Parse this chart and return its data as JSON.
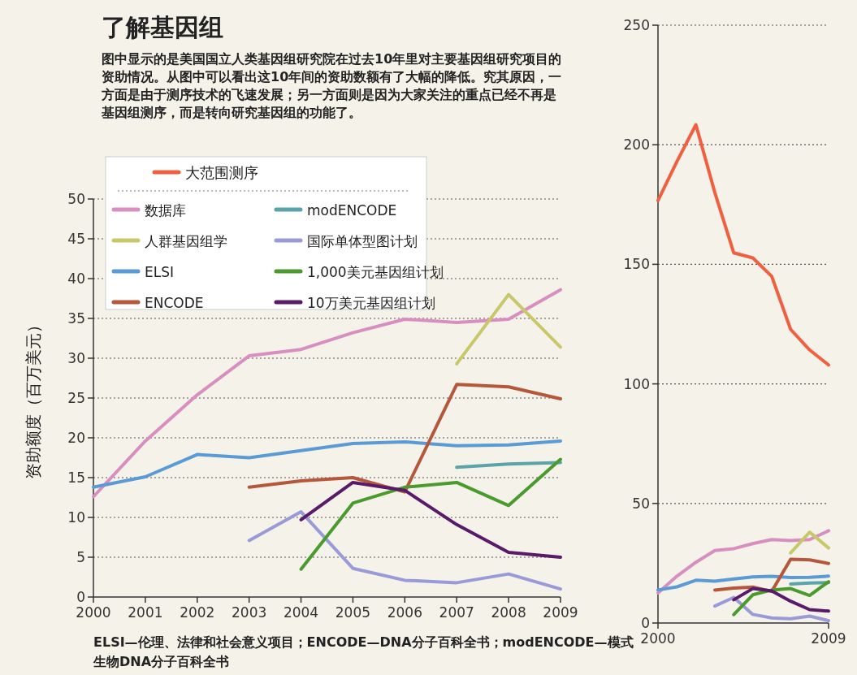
{
  "chart_data": [
    {
      "type": "line",
      "title": "了解基因组",
      "subtitle": "图中显示的是美国国立人类基因组研究院在过去10年里对主要基因组研究项目的资助情况。从图中可以看出这10年间的资助数额有了大幅的降低。究其原因，一方面是由于测序技术的飞速发展；另一方面则是因为大家关注的重点已经不再是基因组测序，而是转向研究基因组的功能了。",
      "ylabel": "资助额度（百万美元）",
      "annotations": [
        "ELSI—伦理、法律和社会意义项目；ENCODE—DNA分子百科全书；modENCODE—模式生物DNA分子百科全书"
      ],
      "xlim": [
        2000,
        2009
      ],
      "ylim": [
        0,
        50
      ],
      "xticks": [
        2000,
        2001,
        2002,
        2003,
        2004,
        2005,
        2006,
        2007,
        2008,
        2009
      ],
      "yticks": [
        0,
        5,
        10,
        15,
        20,
        25,
        30,
        35,
        40,
        45,
        50
      ],
      "grid": "y",
      "legend": "top left",
      "series": [
        {
          "name": "数据库",
          "color": "#d98ec0",
          "x": [
            2000,
            2001,
            2002,
            2003,
            2004,
            2005,
            2006,
            2007,
            2008,
            2009
          ],
          "values": [
            12.6,
            19.6,
            25.4,
            30.3,
            31.1,
            33.2,
            34.9,
            34.5,
            34.9,
            38.6
          ]
        },
        {
          "name": "人群基因组学",
          "color": "#c8c86a",
          "x": [
            2007,
            2008,
            2009
          ],
          "values": [
            29.3,
            38.0,
            31.4
          ]
        },
        {
          "name": "ELSI",
          "color": "#5b9bd5",
          "x": [
            2000,
            2001,
            2002,
            2003,
            2004,
            2005,
            2006,
            2007,
            2008,
            2009
          ],
          "values": [
            13.8,
            15.1,
            17.9,
            17.5,
            18.4,
            19.3,
            19.5,
            19.0,
            19.1,
            19.6
          ]
        },
        {
          "name": "ENCODE",
          "color": "#b5573a",
          "x": [
            2003,
            2004,
            2005,
            2006,
            2007,
            2008,
            2009
          ],
          "values": [
            13.8,
            14.6,
            15.0,
            13.2,
            26.7,
            26.4,
            24.9
          ]
        },
        {
          "name": "modENCODE",
          "color": "#5aa3a8",
          "x": [
            2007,
            2008,
            2009
          ],
          "values": [
            16.3,
            16.7,
            16.9
          ]
        },
        {
          "name": "国际单体型图计划",
          "color": "#9a9ad8",
          "x": [
            2003,
            2004,
            2005,
            2006,
            2007,
            2008,
            2009
          ],
          "values": [
            7.1,
            10.7,
            3.6,
            2.1,
            1.8,
            2.9,
            1.0
          ]
        },
        {
          "name": "1,000美元基因组计划",
          "color": "#4a9a2e",
          "x": [
            2004,
            2005,
            2006,
            2007,
            2008,
            2009
          ],
          "values": [
            3.5,
            11.8,
            13.8,
            14.4,
            11.5,
            17.3
          ]
        },
        {
          "name": "10万美元基因组计划",
          "color": "#5a1a6a",
          "x": [
            2004,
            2005,
            2006,
            2007,
            2008,
            2009
          ],
          "values": [
            9.7,
            14.4,
            13.4,
            9.1,
            5.6,
            5.0
          ]
        }
      ]
    },
    {
      "type": "line",
      "xlim": [
        2000,
        2009
      ],
      "ylim": [
        0,
        250
      ],
      "xticks": [
        2000,
        2009
      ],
      "yticks": [
        0,
        50,
        100,
        150,
        200,
        250
      ],
      "grid": "y",
      "legend": "left",
      "series": [
        {
          "name": "大范围测序",
          "color": "#f06040",
          "x": [
            2000,
            2001,
            2002,
            2003,
            2004,
            2005,
            2006,
            2007,
            2008,
            2009
          ],
          "values": [
            176.7,
            193,
            208.4,
            180,
            154.8,
            152.7,
            145,
            122.8,
            114.2,
            107.9
          ]
        },
        {
          "color": "#d98ec0",
          "x": [
            2000,
            2001,
            2002,
            2003,
            2004,
            2005,
            2006,
            2007,
            2008,
            2009
          ],
          "values": [
            12.6,
            19.6,
            25.4,
            30.3,
            31.1,
            33.2,
            34.9,
            34.5,
            34.9,
            38.6
          ]
        },
        {
          "color": "#c8c86a",
          "x": [
            2007,
            2008,
            2009
          ],
          "values": [
            29.3,
            38.0,
            31.4
          ]
        },
        {
          "color": "#5b9bd5",
          "x": [
            2000,
            2001,
            2002,
            2003,
            2004,
            2005,
            2006,
            2007,
            2008,
            2009
          ],
          "values": [
            13.8,
            15.1,
            17.9,
            17.5,
            18.4,
            19.3,
            19.5,
            19.0,
            19.1,
            19.6
          ]
        },
        {
          "color": "#b5573a",
          "x": [
            2003,
            2004,
            2005,
            2006,
            2007,
            2008,
            2009
          ],
          "values": [
            13.8,
            14.6,
            15.0,
            13.2,
            26.7,
            26.4,
            24.9
          ]
        },
        {
          "color": "#5aa3a8",
          "x": [
            2007,
            2008,
            2009
          ],
          "values": [
            16.3,
            16.7,
            16.9
          ]
        },
        {
          "color": "#9a9ad8",
          "x": [
            2003,
            2004,
            2005,
            2006,
            2007,
            2008,
            2009
          ],
          "values": [
            7.1,
            10.7,
            3.6,
            2.1,
            1.8,
            2.9,
            1.0
          ]
        },
        {
          "color": "#4a9a2e",
          "x": [
            2004,
            2005,
            2006,
            2007,
            2008,
            2009
          ],
          "values": [
            3.5,
            11.8,
            13.8,
            14.4,
            11.5,
            17.3
          ]
        },
        {
          "color": "#5a1a6a",
          "x": [
            2004,
            2005,
            2006,
            2007,
            2008,
            2009
          ],
          "values": [
            9.7,
            14.4,
            13.4,
            9.1,
            5.6,
            5.0
          ]
        }
      ]
    }
  ]
}
